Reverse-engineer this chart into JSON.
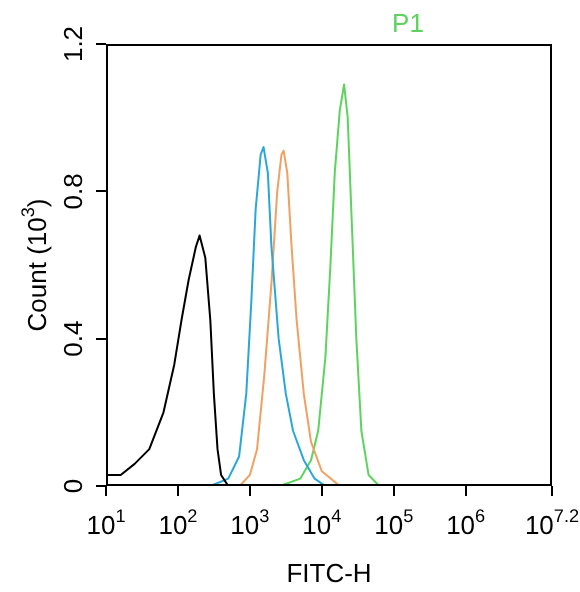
{
  "chart_data": {
    "type": "line",
    "annotations": [
      "P1"
    ],
    "xlabel": "FITC-H",
    "ylabel": "Count (10$^{3}$)",
    "log": "x",
    "grid": false,
    "legend": false,
    "marker": "none",
    "line_style": "solid",
    "xlim": [
      10,
      15848932
    ],
    "xticks": [
      {
        "value": 10,
        "label": "10$^{1}$"
      },
      {
        "value": 100,
        "label": "10$^{2}$"
      },
      {
        "value": 1000,
        "label": "10$^{3}$"
      },
      {
        "value": 10000,
        "label": "10$^{4}$"
      },
      {
        "value": 100000,
        "label": "10$^{5}$"
      },
      {
        "value": 1000000,
        "label": "10$^{6}$"
      },
      {
        "value": 15848932,
        "label": "10$^{7.2}$"
      }
    ],
    "ylim": [
      0,
      1.2
    ],
    "yticks": [
      0,
      0.4,
      0.8,
      1.2
    ],
    "series": [
      {
        "color": "#000000",
        "x": [
          10,
          16,
          25,
          40,
          63,
          89,
          112,
          141,
          178,
          200,
          240,
          282,
          316,
          355,
          398,
          501
        ],
        "values": [
          0.03,
          0.03,
          0.06,
          0.1,
          0.2,
          0.33,
          0.45,
          0.56,
          0.65,
          0.68,
          0.62,
          0.45,
          0.25,
          0.1,
          0.03,
          0
        ]
      },
      {
        "color": "#2aa7d8",
        "x": [
          282,
          501,
          708,
          891,
          1047,
          1202,
          1413,
          1549,
          1778,
          1995,
          2512,
          3162,
          3981,
          5623,
          7943,
          11220
        ],
        "values": [
          0,
          0.02,
          0.08,
          0.25,
          0.5,
          0.75,
          0.9,
          0.92,
          0.85,
          0.65,
          0.4,
          0.25,
          0.15,
          0.07,
          0.02,
          0
        ]
      },
      {
        "color": "#f0a060",
        "x": [
          724,
          1000,
          1259,
          1585,
          1995,
          2399,
          2754,
          2951,
          3311,
          3802,
          4467,
          5623,
          7079,
          10000,
          17783
        ],
        "values": [
          0,
          0.03,
          0.1,
          0.3,
          0.55,
          0.8,
          0.9,
          0.91,
          0.85,
          0.65,
          0.45,
          0.25,
          0.12,
          0.04,
          0
        ]
      },
      {
        "color": "#5dd35d",
        "x": [
          2630,
          5012,
          7079,
          8913,
          11220,
          13183,
          15136,
          17783,
          20417,
          22909,
          26303,
          30200,
          35481,
          44668,
          63096
        ],
        "values": [
          0,
          0.02,
          0.07,
          0.15,
          0.35,
          0.6,
          0.85,
          1.02,
          1.09,
          1,
          0.7,
          0.4,
          0.15,
          0.03,
          0
        ]
      }
    ]
  }
}
